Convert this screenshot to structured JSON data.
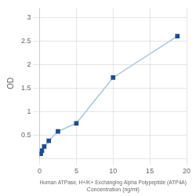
{
  "chart_data": {
    "type": "line",
    "xlabel": "Human ATPase, H+/K+ Exchanging Alpha Polypeptide (ATP4A)\nConcentration (ng/ml)",
    "ylabel": "OD",
    "x": [
      0.156,
      0.313,
      0.625,
      1.25,
      2.5,
      5.0,
      10.0,
      18.75
    ],
    "values": [
      0.105,
      0.17,
      0.26,
      0.38,
      0.58,
      0.75,
      1.72,
      2.6
    ],
    "color": "#A8C8DC",
    "colors": [
      "#1F4E8C",
      "#1F4E8C",
      "#1F4E8C",
      "#1F4E8C",
      "#1F4E8C",
      "#1F4E8C",
      "#1F4E8C",
      "#1F4E8C"
    ],
    "marker": "square",
    "xlim": [
      0,
      20
    ],
    "xticks": [
      0,
      5,
      10,
      15,
      20
    ],
    "ylim": [
      0,
      3.2
    ],
    "yticks": [
      0.5,
      1,
      1.5,
      2,
      2.5,
      3
    ],
    "grid": true
  }
}
